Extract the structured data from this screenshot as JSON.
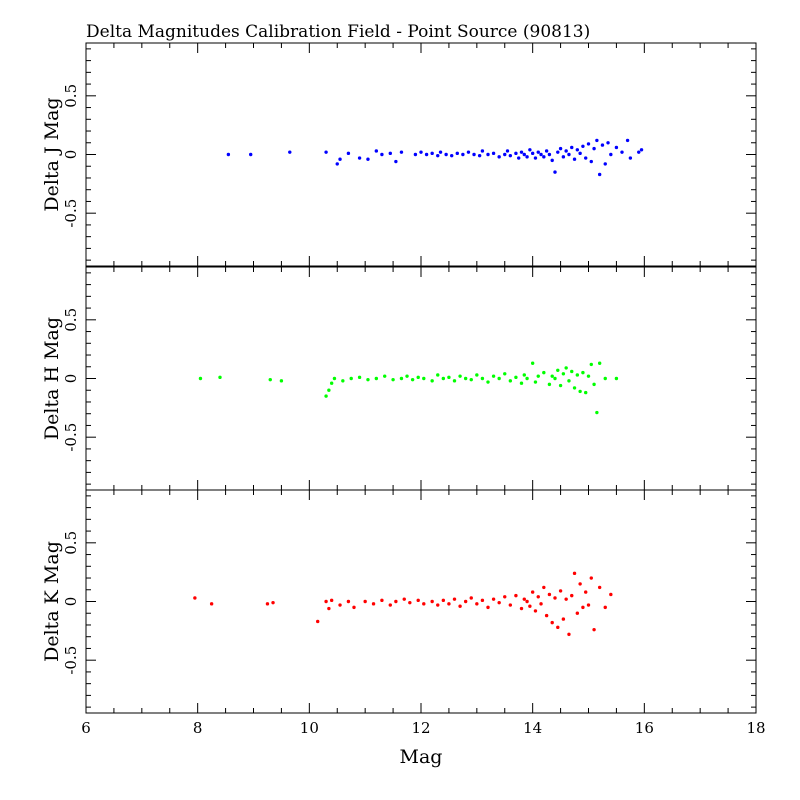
{
  "chart_data": {
    "type": "scatter",
    "title": "Delta Magnitudes Calibration Field - Point Source (90813)",
    "xlabel": "Mag",
    "xlim": [
      6,
      18
    ],
    "x_ticks": [
      6,
      8,
      10,
      12,
      14,
      16,
      18
    ],
    "x_tick_labels": [
      "6",
      "8",
      "10",
      "12",
      "14",
      "16",
      "18"
    ],
    "ylim": [
      -0.95,
      0.95
    ],
    "y_tick_labels": [
      "-0.5",
      "0",
      "0.5"
    ],
    "grid": false,
    "legend": "none",
    "panels": [
      {
        "ylabel": "Delta J Mag",
        "color": "#0000ff",
        "points": [
          [
            8.55,
            0.0
          ],
          [
            8.95,
            0.0
          ],
          [
            9.65,
            0.02
          ],
          [
            10.3,
            0.02
          ],
          [
            10.5,
            -0.08
          ],
          [
            10.55,
            -0.04
          ],
          [
            10.7,
            0.01
          ],
          [
            10.9,
            -0.03
          ],
          [
            11.05,
            -0.04
          ],
          [
            11.2,
            0.03
          ],
          [
            11.3,
            0.0
          ],
          [
            11.45,
            0.01
          ],
          [
            11.55,
            -0.06
          ],
          [
            11.65,
            0.02
          ],
          [
            11.9,
            0.0
          ],
          [
            12.0,
            0.02
          ],
          [
            12.1,
            0.0
          ],
          [
            12.2,
            0.01
          ],
          [
            12.3,
            -0.01
          ],
          [
            12.35,
            0.02
          ],
          [
            12.45,
            0.0
          ],
          [
            12.55,
            -0.01
          ],
          [
            12.65,
            0.01
          ],
          [
            12.75,
            0.0
          ],
          [
            12.85,
            0.02
          ],
          [
            12.95,
            0.0
          ],
          [
            13.05,
            -0.01
          ],
          [
            13.1,
            0.03
          ],
          [
            13.2,
            0.0
          ],
          [
            13.3,
            0.01
          ],
          [
            13.4,
            -0.02
          ],
          [
            13.5,
            0.0
          ],
          [
            13.55,
            0.03
          ],
          [
            13.6,
            -0.01
          ],
          [
            13.7,
            0.01
          ],
          [
            13.75,
            -0.03
          ],
          [
            13.8,
            0.02
          ],
          [
            13.85,
            0.0
          ],
          [
            13.9,
            -0.02
          ],
          [
            13.95,
            0.04
          ],
          [
            14.0,
            0.01
          ],
          [
            14.05,
            -0.03
          ],
          [
            14.1,
            0.02
          ],
          [
            14.15,
            0.0
          ],
          [
            14.2,
            -0.02
          ],
          [
            14.25,
            0.03
          ],
          [
            14.3,
            0.0
          ],
          [
            14.35,
            -0.05
          ],
          [
            14.4,
            -0.15
          ],
          [
            14.45,
            0.02
          ],
          [
            14.5,
            0.05
          ],
          [
            14.55,
            -0.02
          ],
          [
            14.6,
            0.03
          ],
          [
            14.65,
            0.0
          ],
          [
            14.7,
            0.06
          ],
          [
            14.75,
            -0.04
          ],
          [
            14.8,
            0.04
          ],
          [
            14.85,
            0.01
          ],
          [
            14.9,
            0.07
          ],
          [
            14.95,
            -0.03
          ],
          [
            15.0,
            0.09
          ],
          [
            15.05,
            -0.06
          ],
          [
            15.1,
            0.05
          ],
          [
            15.15,
            0.12
          ],
          [
            15.2,
            -0.17
          ],
          [
            15.25,
            0.08
          ],
          [
            15.3,
            -0.08
          ],
          [
            15.35,
            0.1
          ],
          [
            15.4,
            0.0
          ],
          [
            15.5,
            0.06
          ],
          [
            15.6,
            0.02
          ],
          [
            15.7,
            0.12
          ],
          [
            15.75,
            -0.03
          ],
          [
            15.9,
            0.02
          ],
          [
            15.95,
            0.04
          ]
        ]
      },
      {
        "ylabel": "Delta H Mag",
        "color": "#00ff00",
        "points": [
          [
            8.05,
            0.0
          ],
          [
            8.4,
            0.01
          ],
          [
            9.3,
            -0.01
          ],
          [
            9.5,
            -0.02
          ],
          [
            10.3,
            -0.15
          ],
          [
            10.35,
            -0.1
          ],
          [
            10.4,
            -0.04
          ],
          [
            10.45,
            0.0
          ],
          [
            10.6,
            -0.02
          ],
          [
            10.75,
            0.0
          ],
          [
            10.9,
            0.01
          ],
          [
            11.05,
            -0.01
          ],
          [
            11.2,
            0.0
          ],
          [
            11.35,
            0.02
          ],
          [
            11.5,
            -0.01
          ],
          [
            11.65,
            0.0
          ],
          [
            11.75,
            0.02
          ],
          [
            11.85,
            -0.01
          ],
          [
            11.95,
            0.01
          ],
          [
            12.05,
            0.0
          ],
          [
            12.2,
            -0.02
          ],
          [
            12.3,
            0.03
          ],
          [
            12.4,
            0.0
          ],
          [
            12.5,
            0.01
          ],
          [
            12.6,
            -0.02
          ],
          [
            12.7,
            0.02
          ],
          [
            12.8,
            0.0
          ],
          [
            12.9,
            -0.01
          ],
          [
            13.0,
            0.03
          ],
          [
            13.1,
            0.0
          ],
          [
            13.2,
            -0.03
          ],
          [
            13.3,
            0.02
          ],
          [
            13.4,
            0.0
          ],
          [
            13.5,
            0.04
          ],
          [
            13.6,
            -0.02
          ],
          [
            13.7,
            0.01
          ],
          [
            13.8,
            -0.04
          ],
          [
            13.85,
            0.03
          ],
          [
            13.9,
            0.0
          ],
          [
            14.0,
            0.13
          ],
          [
            14.05,
            -0.03
          ],
          [
            14.1,
            0.02
          ],
          [
            14.2,
            0.05
          ],
          [
            14.3,
            -0.05
          ],
          [
            14.35,
            0.02
          ],
          [
            14.4,
            0.0
          ],
          [
            14.45,
            0.07
          ],
          [
            14.5,
            -0.06
          ],
          [
            14.55,
            0.04
          ],
          [
            14.6,
            0.09
          ],
          [
            14.65,
            -0.02
          ],
          [
            14.7,
            0.06
          ],
          [
            14.75,
            -0.08
          ],
          [
            14.8,
            0.03
          ],
          [
            14.85,
            -0.11
          ],
          [
            14.9,
            0.05
          ],
          [
            14.95,
            -0.12
          ],
          [
            15.0,
            0.02
          ],
          [
            15.05,
            0.12
          ],
          [
            15.1,
            -0.05
          ],
          [
            15.15,
            -0.29
          ],
          [
            15.2,
            0.13
          ],
          [
            15.3,
            0.0
          ],
          [
            15.5,
            0.0
          ]
        ]
      },
      {
        "ylabel": "Delta K Mag",
        "color": "#ff0000",
        "points": [
          [
            7.95,
            0.03
          ],
          [
            8.25,
            -0.02
          ],
          [
            9.25,
            -0.02
          ],
          [
            9.35,
            -0.01
          ],
          [
            10.15,
            -0.17
          ],
          [
            10.3,
            0.0
          ],
          [
            10.35,
            -0.06
          ],
          [
            10.4,
            0.01
          ],
          [
            10.55,
            -0.03
          ],
          [
            10.7,
            0.0
          ],
          [
            10.8,
            -0.05
          ],
          [
            11.0,
            0.0
          ],
          [
            11.15,
            -0.02
          ],
          [
            11.3,
            0.01
          ],
          [
            11.45,
            -0.03
          ],
          [
            11.55,
            0.0
          ],
          [
            11.7,
            0.02
          ],
          [
            11.8,
            -0.01
          ],
          [
            11.95,
            0.01
          ],
          [
            12.05,
            -0.02
          ],
          [
            12.2,
            0.0
          ],
          [
            12.3,
            -0.03
          ],
          [
            12.4,
            0.01
          ],
          [
            12.5,
            -0.02
          ],
          [
            12.6,
            0.02
          ],
          [
            12.7,
            -0.04
          ],
          [
            12.8,
            0.0
          ],
          [
            12.9,
            0.03
          ],
          [
            13.0,
            -0.02
          ],
          [
            13.1,
            0.01
          ],
          [
            13.2,
            -0.05
          ],
          [
            13.3,
            0.02
          ],
          [
            13.4,
            -0.01
          ],
          [
            13.5,
            0.04
          ],
          [
            13.6,
            -0.03
          ],
          [
            13.7,
            0.05
          ],
          [
            13.8,
            -0.06
          ],
          [
            13.85,
            0.02
          ],
          [
            13.9,
            0.0
          ],
          [
            13.95,
            -0.04
          ],
          [
            14.0,
            0.08
          ],
          [
            14.05,
            -0.08
          ],
          [
            14.1,
            0.04
          ],
          [
            14.15,
            -0.02
          ],
          [
            14.2,
            0.12
          ],
          [
            14.25,
            -0.12
          ],
          [
            14.3,
            0.06
          ],
          [
            14.35,
            -0.18
          ],
          [
            14.4,
            0.03
          ],
          [
            14.45,
            -0.22
          ],
          [
            14.5,
            0.09
          ],
          [
            14.55,
            -0.15
          ],
          [
            14.6,
            0.02
          ],
          [
            14.65,
            -0.28
          ],
          [
            14.7,
            0.05
          ],
          [
            14.75,
            0.24
          ],
          [
            14.8,
            -0.1
          ],
          [
            14.85,
            0.15
          ],
          [
            14.9,
            -0.05
          ],
          [
            14.95,
            0.08
          ],
          [
            15.0,
            -0.03
          ],
          [
            15.05,
            0.2
          ],
          [
            15.1,
            -0.24
          ],
          [
            15.2,
            0.12
          ],
          [
            15.3,
            -0.05
          ],
          [
            15.4,
            0.06
          ]
        ]
      }
    ]
  }
}
